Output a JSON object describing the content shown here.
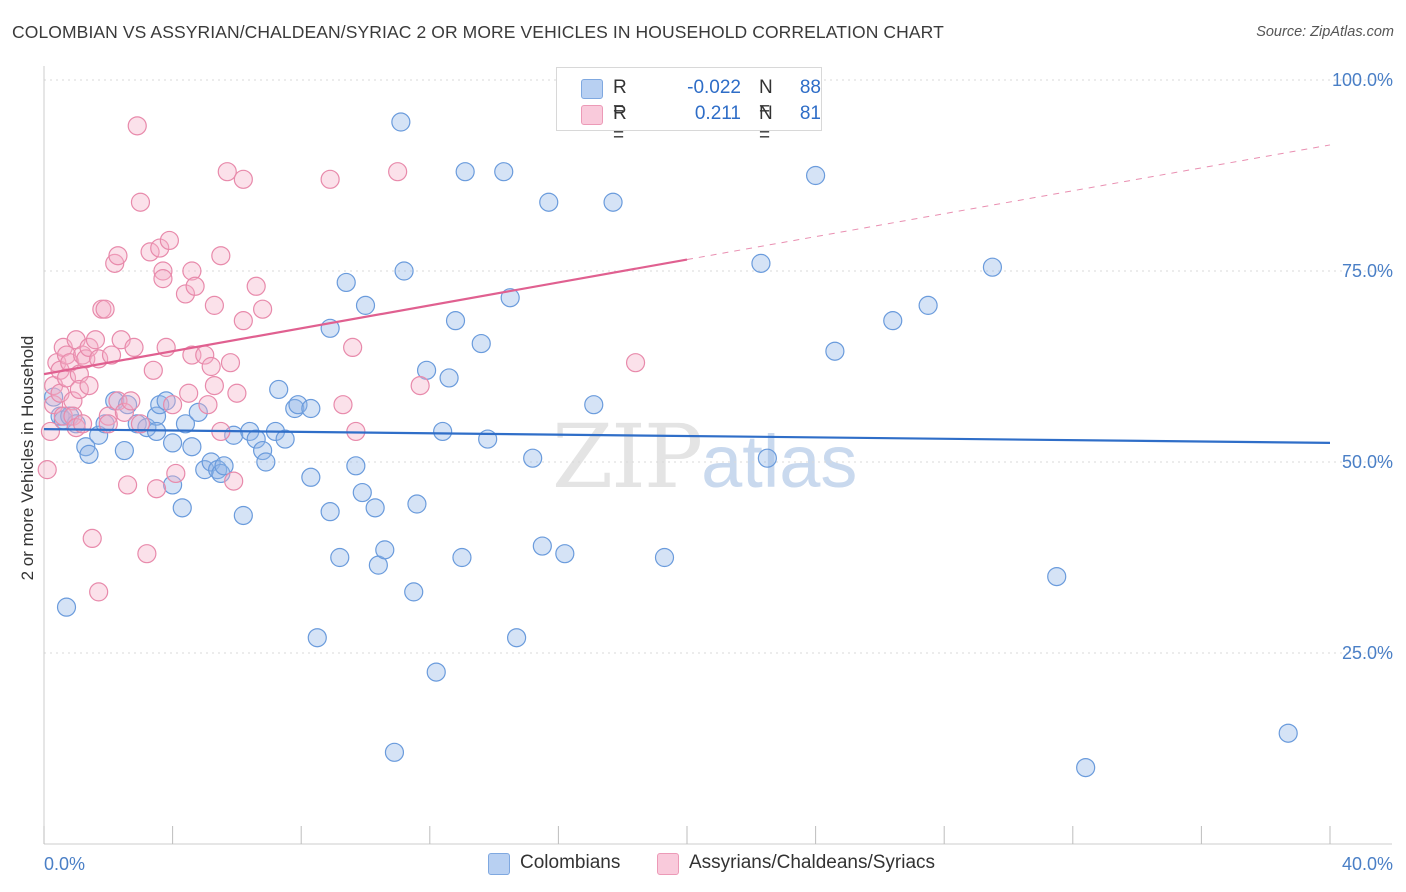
{
  "chart_data": {
    "type": "scatter",
    "title": "COLOMBIAN VS ASSYRIAN/CHALDEAN/SYRIAC 2 OR MORE VEHICLES IN HOUSEHOLD CORRELATION CHART",
    "source": "Source: ZipAtlas.com",
    "xlabel": "",
    "ylabel": "2 or more Vehicles in Household",
    "xlim": [
      0,
      40
    ],
    "ylim": [
      0,
      100
    ],
    "x_tick_labels": [
      "0.0%",
      "40.0%"
    ],
    "y_ticks": [
      25,
      50,
      75,
      100
    ],
    "y_tick_labels": [
      "25.0%",
      "50.0%",
      "75.0%",
      "100.0%"
    ],
    "grid": true,
    "legend": {
      "position": "top-center",
      "rows": [
        {
          "r_label": "R =",
          "r_value": "-0.022",
          "n_label": "N =",
          "n_value": "88"
        },
        {
          "r_label": "R =",
          "r_value": "0.211",
          "n_label": "N =",
          "n_value": "81"
        }
      ]
    },
    "watermark": {
      "zip": "ZIP",
      "atlas": "atlas"
    },
    "series": [
      {
        "name": "Colombians",
        "color": "#90b6e8",
        "stroke": "#6a9bdc",
        "line_color": "#2f6ec8",
        "trend": {
          "x0": 0,
          "y0": 54.3,
          "x1": 40,
          "y1": 52.5,
          "solid_until": 40
        },
        "points": [
          [
            0.3,
            58.5
          ],
          [
            0.5,
            56
          ],
          [
            0.6,
            55.5
          ],
          [
            0.8,
            56
          ],
          [
            1.0,
            55
          ],
          [
            1.3,
            52
          ],
          [
            1.4,
            51
          ],
          [
            1.7,
            53.5
          ],
          [
            1.9,
            55
          ],
          [
            2.2,
            58
          ],
          [
            2.5,
            51.5
          ],
          [
            2.6,
            57.5
          ],
          [
            2.9,
            55
          ],
          [
            3.2,
            54.5
          ],
          [
            3.5,
            56
          ],
          [
            3.5,
            54
          ],
          [
            3.6,
            57.5
          ],
          [
            3.8,
            58
          ],
          [
            4.0,
            47
          ],
          [
            4.0,
            52.5
          ],
          [
            4.3,
            44
          ],
          [
            4.4,
            55
          ],
          [
            4.6,
            52
          ],
          [
            4.8,
            56.5
          ],
          [
            5.0,
            49
          ],
          [
            5.2,
            50
          ],
          [
            5.4,
            49
          ],
          [
            5.5,
            48.5
          ],
          [
            5.6,
            49.5
          ],
          [
            5.9,
            53.5
          ],
          [
            6.2,
            43
          ],
          [
            6.4,
            54
          ],
          [
            6.6,
            53
          ],
          [
            6.8,
            51.5
          ],
          [
            6.9,
            50
          ],
          [
            7.2,
            54
          ],
          [
            7.3,
            59.5
          ],
          [
            7.5,
            53
          ],
          [
            7.8,
            57
          ],
          [
            7.9,
            57.5
          ],
          [
            8.3,
            57
          ],
          [
            8.3,
            48
          ],
          [
            8.5,
            27
          ],
          [
            8.9,
            43.5
          ],
          [
            8.9,
            67.5
          ],
          [
            9.2,
            37.5
          ],
          [
            9.4,
            73.5
          ],
          [
            9.7,
            49.5
          ],
          [
            9.9,
            46
          ],
          [
            10.0,
            70.5
          ],
          [
            10.3,
            44
          ],
          [
            10.4,
            36.5
          ],
          [
            10.6,
            38.5
          ],
          [
            10.9,
            12
          ],
          [
            11.1,
            94.5
          ],
          [
            11.2,
            75
          ],
          [
            11.5,
            33
          ],
          [
            11.6,
            44.5
          ],
          [
            11.9,
            62
          ],
          [
            12.2,
            22.5
          ],
          [
            12.4,
            54
          ],
          [
            12.6,
            61
          ],
          [
            12.8,
            68.5
          ],
          [
            13.0,
            37.5
          ],
          [
            13.1,
            88
          ],
          [
            13.6,
            65.5
          ],
          [
            13.8,
            53
          ],
          [
            14.3,
            88
          ],
          [
            14.5,
            71.5
          ],
          [
            14.7,
            27
          ],
          [
            15.2,
            50.5
          ],
          [
            15.5,
            39
          ],
          [
            15.7,
            84
          ],
          [
            16.2,
            38
          ],
          [
            17.1,
            57.5
          ],
          [
            17.7,
            84
          ],
          [
            19.3,
            37.5
          ],
          [
            22.3,
            76
          ],
          [
            22.5,
            50.5
          ],
          [
            24.0,
            87.5
          ],
          [
            24.6,
            64.5
          ],
          [
            26.4,
            68.5
          ],
          [
            27.5,
            70.5
          ],
          [
            29.5,
            75.5
          ],
          [
            31.5,
            35
          ],
          [
            32.4,
            10
          ],
          [
            38.7,
            14.5
          ],
          [
            0.7,
            31
          ]
        ]
      },
      {
        "name": "Assyrians/Chaldeans/Syriacs",
        "color": "#f4b0c8",
        "stroke": "#e88aab",
        "line_color": "#e06090",
        "trend": {
          "x0": 0,
          "y0": 61.5,
          "x1": 40,
          "y1": 91.5,
          "solid_until": 20
        },
        "points": [
          [
            0.1,
            49
          ],
          [
            0.2,
            54
          ],
          [
            0.3,
            60
          ],
          [
            0.3,
            57.5
          ],
          [
            0.4,
            63
          ],
          [
            0.5,
            62
          ],
          [
            0.5,
            59
          ],
          [
            0.6,
            65
          ],
          [
            0.6,
            56
          ],
          [
            0.7,
            64
          ],
          [
            0.7,
            61
          ],
          [
            0.8,
            63
          ],
          [
            0.9,
            58
          ],
          [
            0.9,
            56
          ],
          [
            1.0,
            66
          ],
          [
            1.0,
            54.5
          ],
          [
            1.1,
            61.5
          ],
          [
            1.1,
            59.5
          ],
          [
            1.2,
            64
          ],
          [
            1.2,
            55
          ],
          [
            1.3,
            63.5
          ],
          [
            1.4,
            60
          ],
          [
            1.4,
            65
          ],
          [
            1.5,
            40
          ],
          [
            1.6,
            66
          ],
          [
            1.7,
            33
          ],
          [
            1.7,
            63.5
          ],
          [
            1.8,
            70
          ],
          [
            1.9,
            70
          ],
          [
            2.0,
            56
          ],
          [
            2.0,
            55
          ],
          [
            2.1,
            64
          ],
          [
            2.2,
            76
          ],
          [
            2.3,
            77
          ],
          [
            2.3,
            58
          ],
          [
            2.4,
            66
          ],
          [
            2.5,
            56.5
          ],
          [
            2.6,
            47
          ],
          [
            2.7,
            58
          ],
          [
            2.8,
            65
          ],
          [
            2.9,
            94
          ],
          [
            3.0,
            84
          ],
          [
            3.0,
            55
          ],
          [
            3.2,
            38
          ],
          [
            3.3,
            77.5
          ],
          [
            3.4,
            62
          ],
          [
            3.5,
            46.5
          ],
          [
            3.6,
            78
          ],
          [
            3.7,
            75
          ],
          [
            3.7,
            74
          ],
          [
            3.8,
            65
          ],
          [
            3.9,
            79
          ],
          [
            4.0,
            57.5
          ],
          [
            4.1,
            48.5
          ],
          [
            4.4,
            72
          ],
          [
            4.5,
            59
          ],
          [
            4.6,
            64
          ],
          [
            4.6,
            75
          ],
          [
            4.7,
            73
          ],
          [
            5.0,
            64
          ],
          [
            5.1,
            57.5
          ],
          [
            5.2,
            62.5
          ],
          [
            5.3,
            60
          ],
          [
            5.3,
            70.5
          ],
          [
            5.5,
            77
          ],
          [
            5.5,
            54
          ],
          [
            5.7,
            88
          ],
          [
            5.8,
            63
          ],
          [
            5.9,
            47.5
          ],
          [
            6.0,
            59
          ],
          [
            6.2,
            87
          ],
          [
            6.2,
            68.5
          ],
          [
            6.6,
            73
          ],
          [
            6.8,
            70
          ],
          [
            8.9,
            87
          ],
          [
            9.3,
            57.5
          ],
          [
            9.6,
            65
          ],
          [
            9.7,
            54
          ],
          [
            11.0,
            88
          ],
          [
            11.7,
            60
          ],
          [
            18.4,
            63
          ]
        ]
      }
    ]
  },
  "legend_bottom": [
    {
      "label": "Colombians"
    },
    {
      "label": "Assyrians/Chaldeans/Syriacs"
    }
  ]
}
